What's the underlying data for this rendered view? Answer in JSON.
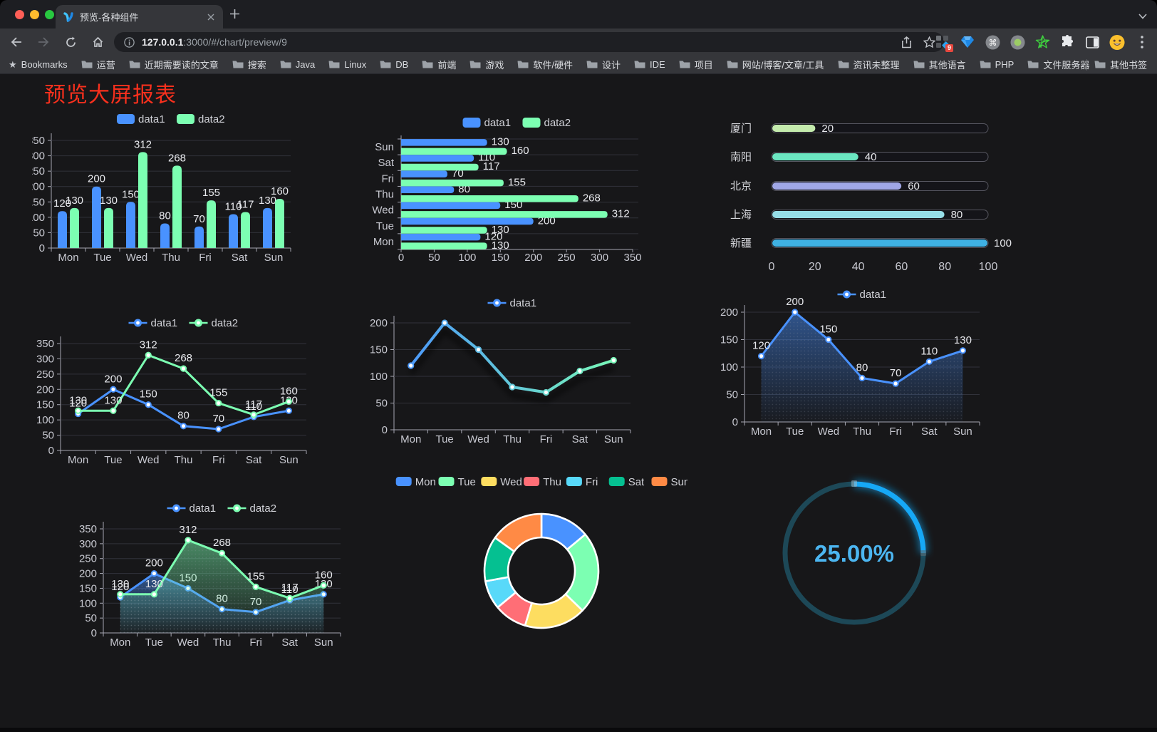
{
  "browser": {
    "tab": {
      "title": "预览-各种组件"
    },
    "url": {
      "host": "127.0.0.1",
      "rest": ":3000/#/chart/preview/9"
    },
    "extension_badge": "9",
    "bookmarks_label": "Bookmarks",
    "bookmark_folders": [
      "运营",
      "近期需要读的文章",
      "搜索",
      "Java",
      "Linux",
      "DB",
      "前端",
      "游戏",
      "软件/硬件",
      "设计",
      "IDE",
      "项目",
      "网站/博客/文章/工具",
      "资讯未整理",
      "其他语言",
      "PHP",
      "文件服务器"
    ],
    "bookmarks_overflow": "»",
    "other_bookmarks": "其他书签"
  },
  "page": {
    "title": "预览大屏报表",
    "title_color": "#f9301d",
    "background": "#171719"
  },
  "theme": {
    "axis": "#a5a6b1",
    "grid": "#31323a",
    "label": "#c8c9d1",
    "value_label": "#e8e9ed",
    "legend_text": "#d0d1d7",
    "data1_color": "#4992ff",
    "data2_color": "#7cffb2"
  },
  "chart_data": [
    {
      "id": "grouped-bar",
      "type": "bar",
      "title": "",
      "categories": [
        "Mon",
        "Tue",
        "Wed",
        "Thu",
        "Fri",
        "Sat",
        "Sun"
      ],
      "series": [
        {
          "name": "data1",
          "color": "#4992ff",
          "values": [
            120,
            200,
            150,
            80,
            70,
            110,
            130
          ]
        },
        {
          "name": "data2",
          "color": "#7cffb2",
          "values": [
            130,
            130,
            312,
            268,
            155,
            117,
            160
          ]
        }
      ],
      "ylim": [
        0,
        350
      ],
      "ystep": 50,
      "legend_position": "top",
      "grid": true
    },
    {
      "id": "grouped-bar-horizontal",
      "type": "bar-horizontal",
      "categories": [
        "Mon",
        "Tue",
        "Wed",
        "Thu",
        "Fri",
        "Sat",
        "Sun"
      ],
      "display_order": "Sun-on-top",
      "series": [
        {
          "name": "data1",
          "color": "#4992ff",
          "values": [
            120,
            200,
            150,
            80,
            70,
            110,
            130
          ]
        },
        {
          "name": "data2",
          "color": "#7cffb2",
          "values": [
            130,
            130,
            312,
            268,
            155,
            117,
            160
          ]
        }
      ],
      "xlim": [
        0,
        350
      ],
      "xstep": 50,
      "legend_position": "top"
    },
    {
      "id": "city-progress",
      "type": "progress-bars",
      "xlim": [
        0,
        100
      ],
      "xticks": [
        0,
        20,
        40,
        60,
        80,
        100
      ],
      "items": [
        {
          "label": "厦门",
          "value": 20,
          "color": "#c4ebad"
        },
        {
          "label": "南阳",
          "value": 40,
          "color": "#6be6c1"
        },
        {
          "label": "北京",
          "value": 60,
          "color": "#a0a7e6"
        },
        {
          "label": "上海",
          "value": 80,
          "color": "#96dee8"
        },
        {
          "label": "新疆",
          "value": 100,
          "color": "#3fb1e3"
        }
      ]
    },
    {
      "id": "dual-line",
      "type": "line",
      "categories": [
        "Mon",
        "Tue",
        "Wed",
        "Thu",
        "Fri",
        "Sat",
        "Sun"
      ],
      "series": [
        {
          "name": "data1",
          "color": "#4992ff",
          "values": [
            120,
            200,
            150,
            80,
            70,
            110,
            130
          ]
        },
        {
          "name": "data2",
          "color": "#7cffb2",
          "values": [
            130,
            130,
            312,
            268,
            155,
            117,
            160
          ]
        }
      ],
      "ylim": [
        0,
        350
      ],
      "ystep": 50,
      "labels": true,
      "legend_position": "top"
    },
    {
      "id": "gradient-line",
      "type": "line",
      "categories": [
        "Mon",
        "Tue",
        "Wed",
        "Thu",
        "Fri",
        "Sat",
        "Sun"
      ],
      "series": [
        {
          "name": "data1",
          "gradient": [
            "#4992ff",
            "#7cffb2"
          ],
          "values": [
            120,
            200,
            150,
            80,
            70,
            110,
            130
          ]
        }
      ],
      "ylim": [
        0,
        200
      ],
      "ystep": 50,
      "labels": false,
      "shadow": true,
      "legend_position": "top"
    },
    {
      "id": "area-line",
      "type": "area",
      "categories": [
        "Mon",
        "Tue",
        "Wed",
        "Thu",
        "Fri",
        "Sat",
        "Sun"
      ],
      "series": [
        {
          "name": "data1",
          "color": "#4992ff",
          "values": [
            120,
            200,
            150,
            80,
            70,
            110,
            130
          ],
          "area": true
        }
      ],
      "ylim": [
        0,
        200
      ],
      "ystep": 50,
      "labels": true,
      "legend_position": "top"
    },
    {
      "id": "dual-area",
      "type": "area",
      "categories": [
        "Mon",
        "Tue",
        "Wed",
        "Thu",
        "Fri",
        "Sat",
        "Sun"
      ],
      "series": [
        {
          "name": "data1",
          "color": "#4992ff",
          "values": [
            120,
            200,
            150,
            80,
            70,
            110,
            130
          ],
          "area": true
        },
        {
          "name": "data2",
          "color": "#7cffb2",
          "values": [
            130,
            130,
            312,
            268,
            155,
            117,
            160
          ],
          "area": true
        }
      ],
      "ylim": [
        0,
        350
      ],
      "ystep": 50,
      "labels": true,
      "legend_position": "top"
    },
    {
      "id": "week-donut",
      "type": "pie",
      "inner_radius_ratio": 0.59,
      "border_color": "#ffffff",
      "slices": [
        {
          "name": "Mon",
          "value": 120,
          "color": "#4992ff"
        },
        {
          "name": "Tue",
          "value": 200,
          "color": "#7cffb2"
        },
        {
          "name": "Wed",
          "value": 150,
          "color": "#fddd60"
        },
        {
          "name": "Thu",
          "value": 80,
          "color": "#ff6e76"
        },
        {
          "name": "Fri",
          "value": 70,
          "color": "#58d9f9"
        },
        {
          "name": "Sat",
          "value": 110,
          "color": "#05c091"
        },
        {
          "name": "Sun",
          "value": 130,
          "color": "#ff8a45"
        }
      ],
      "legend_position": "top"
    },
    {
      "id": "percent-gauge",
      "type": "gauge",
      "value": 25,
      "max": 100,
      "label": "25.00%",
      "progress_color": "#16a8f6",
      "track_color": "#1d4857",
      "text_color": "#4cb6f1"
    }
  ]
}
